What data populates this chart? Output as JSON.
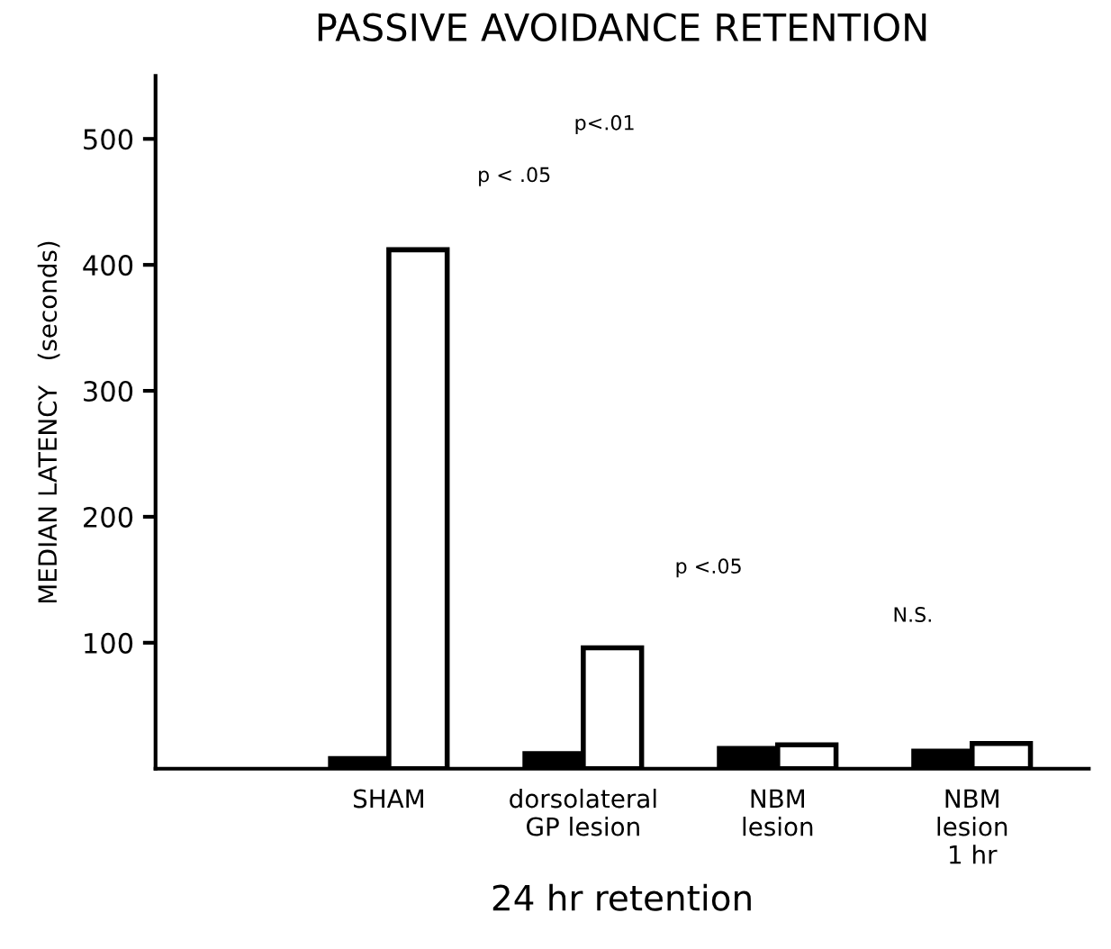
{
  "chart_data": {
    "type": "bar",
    "title": "PASSIVE AVOIDANCE RETENTION",
    "xlabel": "24 hr retention",
    "ylabel": "MEDIAN LATENCY   (seconds)",
    "categories": [
      "SHAM",
      "dorsolateral\nGP lesion",
      "NBM\nlesion",
      "NBM\nlesion\n1 hr"
    ],
    "series": [
      {
        "color": "#000000",
        "values": [
          8,
          12,
          16,
          14
        ]
      },
      {
        "color": "#ffffff",
        "values": [
          412,
          96,
          19,
          20
        ]
      }
    ],
    "ylim": [
      0,
      550
    ],
    "yticks": [
      100,
      200,
      300,
      400,
      500
    ],
    "grid": false,
    "legend": false,
    "annotations": [
      "p<.01",
      "p < .05",
      "p <.05",
      "N.S."
    ]
  }
}
